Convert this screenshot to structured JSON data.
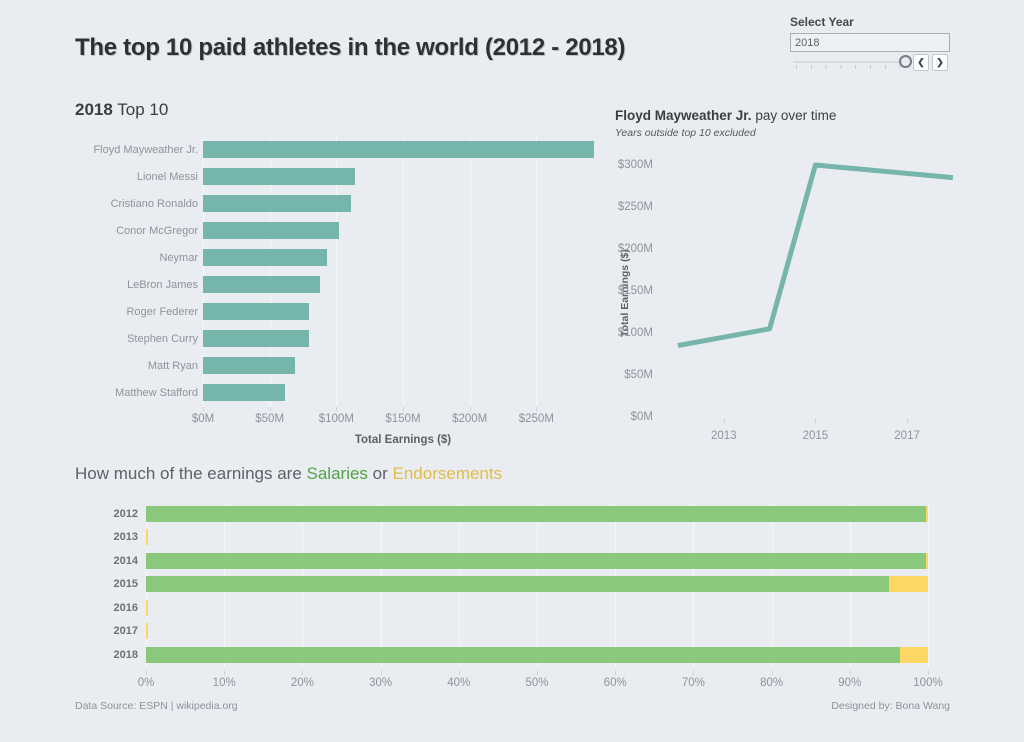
{
  "page": {
    "title": "The top 10 paid athletes in the world (2012 - 2018)",
    "footer_left": "Data Source: ESPN | wikipedia.org",
    "footer_right": "Designed by: Bona Wang"
  },
  "year_selector": {
    "label": "Select Year",
    "value": "2018",
    "prev_label": "❮",
    "next_label": "❯"
  },
  "colors": {
    "background": "#e9edf1",
    "teal": "#76b5ac",
    "green": "#8ac87b",
    "yellow": "#fdd763",
    "grid": "rgba(255,255,255,0.55)"
  },
  "chart_data": [
    {
      "id": "top10-bar-chart",
      "type": "bar",
      "title_bold": "2018",
      "title_rest": " Top 10",
      "categories": [
        "Floyd Mayweather Jr.",
        "Lionel Messi",
        "Cristiano Ronaldo",
        "Conor McGregor",
        "Neymar",
        "LeBron James",
        "Roger Federer",
        "Stephen Curry",
        "Matt Ryan",
        "Matthew Stafford"
      ],
      "values": [
        285,
        111,
        108,
        99,
        90,
        85.5,
        77.2,
        76.9,
        67.3,
        59.5
      ],
      "xlabel": "Total Earnings ($)",
      "x_ticks": [
        "$0M",
        "$50M",
        "$100M",
        "$150M",
        "$200M",
        "$250M"
      ],
      "x_tick_values": [
        0,
        50,
        100,
        150,
        200,
        250
      ],
      "xlim": [
        0,
        300
      ],
      "bar_color": "#76b5ac",
      "grid": true,
      "legend": "none"
    },
    {
      "id": "mayweather-line-chart",
      "type": "line",
      "title_bold": "Floyd Mayweather Jr.",
      "title_rest": " pay over time",
      "subtitle": "Years outside top 10 excluded",
      "x": [
        2012,
        2014,
        2015,
        2018
      ],
      "y": [
        85,
        105,
        300,
        285
      ],
      "ylabel": "Total Earnings ($)",
      "y_ticks": [
        "$0M",
        "$50M",
        "$100M",
        "$150M",
        "$200M",
        "$250M",
        "$300M"
      ],
      "y_tick_values": [
        0,
        50,
        100,
        150,
        200,
        250,
        300
      ],
      "x_ticks": [
        "2013",
        "2015",
        "2017"
      ],
      "x_tick_values": [
        2013,
        2015,
        2017
      ],
      "xlim": [
        2011.5,
        2018.7
      ],
      "ylim": [
        0,
        300
      ],
      "line_color": "#76b5ac",
      "legend": "none"
    },
    {
      "id": "salary-endorsement-chart",
      "type": "bar-stacked",
      "title_parts": [
        {
          "text": "How much of the earnings are ",
          "color": "#5c6268"
        },
        {
          "text": "Salaries",
          "color": "#51a445"
        },
        {
          "text": " or ",
          "color": "#5c6268"
        },
        {
          "text": "Endorsements",
          "color": "#e0bc4a"
        }
      ],
      "categories": [
        "2012",
        "2013",
        "2014",
        "2015",
        "2016",
        "2017",
        "2018"
      ],
      "series": [
        {
          "name": "Salaries",
          "color": "#8ac87b",
          "values": [
            99.7,
            0,
            99.7,
            95,
            0,
            0,
            96.4
          ]
        },
        {
          "name": "Endorsements",
          "color": "#fdd763",
          "values": [
            0.3,
            0.3,
            0.3,
            5,
            0.3,
            0.3,
            3.6
          ]
        }
      ],
      "x_ticks": [
        "0%",
        "10%",
        "20%",
        "30%",
        "40%",
        "50%",
        "60%",
        "70%",
        "80%",
        "90%",
        "100%"
      ],
      "x_tick_values": [
        0,
        10,
        20,
        30,
        40,
        50,
        60,
        70,
        80,
        90,
        100
      ],
      "xlim": [
        0,
        100
      ],
      "grid": true,
      "legend": "in-title"
    }
  ]
}
